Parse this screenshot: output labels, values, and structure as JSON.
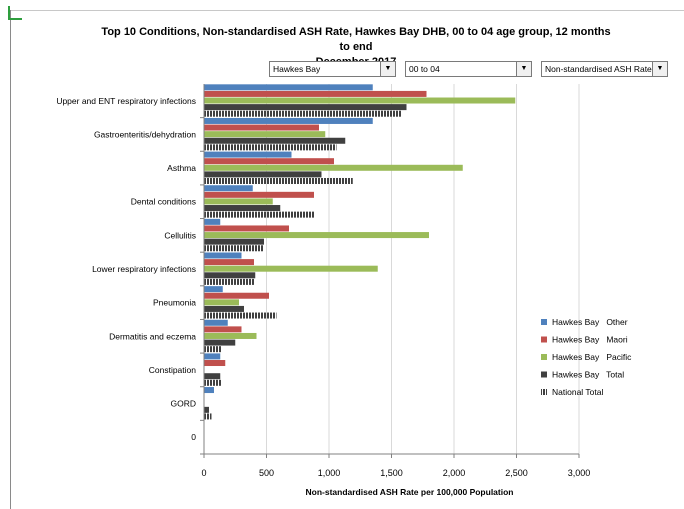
{
  "header": {
    "title_line1": "Top 10 Conditions, Non-standardised ASH Rate, Hawkes Bay DHB, 00 to 04 age group, 12 months to end",
    "title_line2": "December 2017"
  },
  "filters": {
    "dhb": "Hawkes Bay",
    "age_group": "00 to 04",
    "measure": "Non-standardised ASH Rate"
  },
  "icons": {
    "dropdown_arrow": "chevron-down-icon"
  },
  "chart_data": {
    "type": "bar",
    "orientation": "horizontal",
    "title": "Top 10 Conditions, Non-standardised ASH Rate, Hawkes Bay DHB, 00 to 04 age group, 12 months to end December 2017",
    "xlabel": "Non-standardised ASH Rate per 100,000 Population",
    "ylabel": "",
    "xlim": [
      0,
      3000
    ],
    "xticks": [
      0,
      500,
      1000,
      1500,
      2000,
      2500,
      3000
    ],
    "xtick_labels": [
      "0",
      "500",
      "1,000",
      "1,500",
      "2,000",
      "2,500",
      "3,000"
    ],
    "grid": "vertical",
    "legend_position": "right",
    "categories": [
      "Upper and ENT respiratory infections",
      "Gastroenteritis/dehydration",
      "Asthma",
      "Dental conditions",
      "Cellulitis",
      "Lower respiratory infections",
      "Pneumonia",
      "Dermatitis and eczema",
      "Constipation",
      "GORD",
      "0"
    ],
    "series": [
      {
        "name": "Hawkes Bay   Other",
        "color": "#4f81bd",
        "pattern": "solid",
        "values": [
          1350,
          1350,
          700,
          390,
          130,
          300,
          150,
          190,
          130,
          80,
          null
        ]
      },
      {
        "name": "Hawkes Bay   Maori",
        "color": "#c0504d",
        "pattern": "solid",
        "values": [
          1780,
          920,
          1040,
          880,
          680,
          400,
          520,
          300,
          170,
          null,
          null
        ]
      },
      {
        "name": "Hawkes Bay   Pacific",
        "color": "#9bbb59",
        "pattern": "solid",
        "values": [
          2490,
          970,
          2070,
          550,
          1800,
          1390,
          280,
          420,
          null,
          null,
          null
        ]
      },
      {
        "name": "Hawkes Bay   Total",
        "color": "#404040",
        "pattern": "solid",
        "values": [
          1620,
          1130,
          940,
          610,
          480,
          410,
          320,
          250,
          130,
          40,
          null
        ]
      },
      {
        "name": "National Total",
        "color": "#404040",
        "pattern": "striped",
        "values": [
          1580,
          1060,
          1190,
          880,
          480,
          400,
          580,
          140,
          140,
          60,
          null
        ]
      }
    ]
  }
}
